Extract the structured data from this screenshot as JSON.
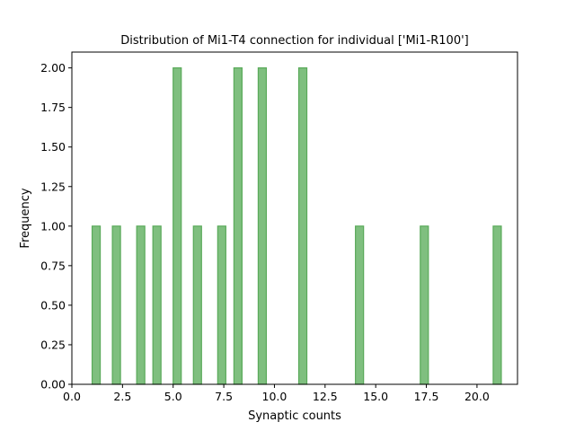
{
  "chart_data": {
    "type": "bar",
    "title": "Distribution of Mi1-T4 connection for individual ['Mi1-R100']",
    "xlabel": "Synaptic counts",
    "ylabel": "Frequency",
    "xlim": [
      0,
      22
    ],
    "ylim": [
      0,
      2.1
    ],
    "xticks": [
      "0.0",
      "2.5",
      "5.0",
      "7.5",
      "10.0",
      "12.5",
      "15.0",
      "17.5",
      "20.0"
    ],
    "yticks": [
      "0.00",
      "0.25",
      "0.50",
      "0.75",
      "1.00",
      "1.25",
      "1.50",
      "1.75",
      "2.00"
    ],
    "bin_width": 0.4,
    "bars": [
      {
        "x": 1,
        "y": 1
      },
      {
        "x": 2,
        "y": 1
      },
      {
        "x": 3.2,
        "y": 1
      },
      {
        "x": 4,
        "y": 1
      },
      {
        "x": 5,
        "y": 2
      },
      {
        "x": 6,
        "y": 1
      },
      {
        "x": 7.2,
        "y": 1
      },
      {
        "x": 8,
        "y": 2
      },
      {
        "x": 9.2,
        "y": 2
      },
      {
        "x": 11.2,
        "y": 2
      },
      {
        "x": 14,
        "y": 1
      },
      {
        "x": 17.2,
        "y": 1
      },
      {
        "x": 20.8,
        "y": 1
      }
    ],
    "bar_fill": "#7fbf7f",
    "bar_edge": "#5aaa5a",
    "grid": false,
    "legend": "none"
  }
}
